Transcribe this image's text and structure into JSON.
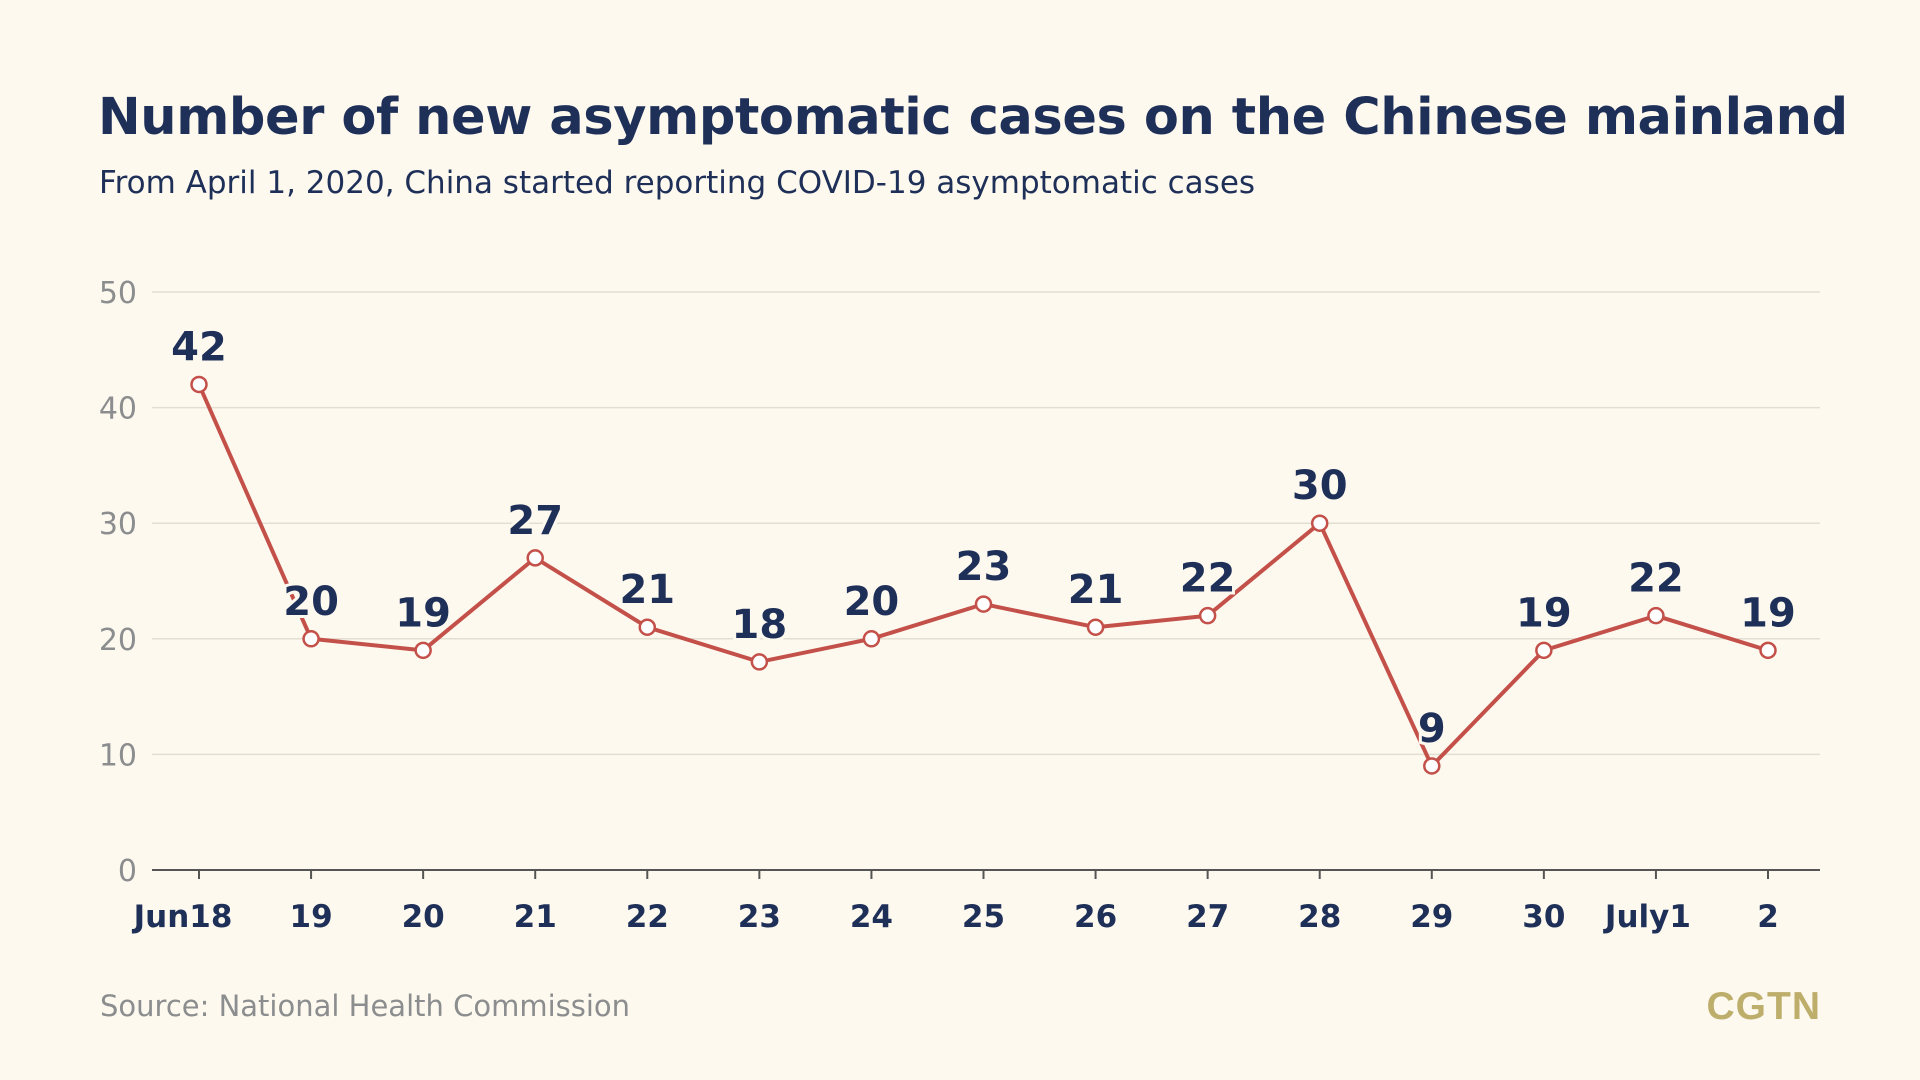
{
  "title": "Number of new asymptomatic cases on the Chinese mainland",
  "subtitle": "From April 1, 2020, China started reporting COVID-19 asymptomatic cases",
  "source": "Source: National Health Commission",
  "logo": "CGTN",
  "colors": {
    "background": "#fdf9ef",
    "title": "#1e2f58",
    "line": "#c4504a",
    "marker_fill": "#ffffff",
    "grid": "#e3ded2",
    "axis": "#555555",
    "y_tick_label": "#8b8d8e",
    "data_label": "#1e2f58",
    "logo": "#bdae6c"
  },
  "chart_data": {
    "type": "line",
    "title": "Number of new asymptomatic cases on the Chinese mainland",
    "subtitle": "From April 1, 2020, China started reporting COVID-19 asymptomatic cases",
    "categories": [
      "Jun18",
      "19",
      "20",
      "21",
      "22",
      "23",
      "24",
      "25",
      "26",
      "27",
      "28",
      "29",
      "30",
      "July1",
      "2"
    ],
    "series": [
      {
        "values": [
          42,
          20,
          19,
          27,
          21,
          18,
          20,
          23,
          21,
          22,
          30,
          9,
          19,
          22,
          19
        ]
      }
    ],
    "data_labels": [
      "42",
      "20",
      "19",
      "27",
      "21",
      "18",
      "20",
      "23",
      "21",
      "22",
      "30",
      "9",
      "19",
      "22",
      "19"
    ],
    "ylim": [
      0,
      50
    ],
    "yticks": [
      0,
      10,
      20,
      30,
      40,
      50
    ],
    "xlabel": "",
    "ylabel": "",
    "grid": true,
    "legend": "none"
  }
}
